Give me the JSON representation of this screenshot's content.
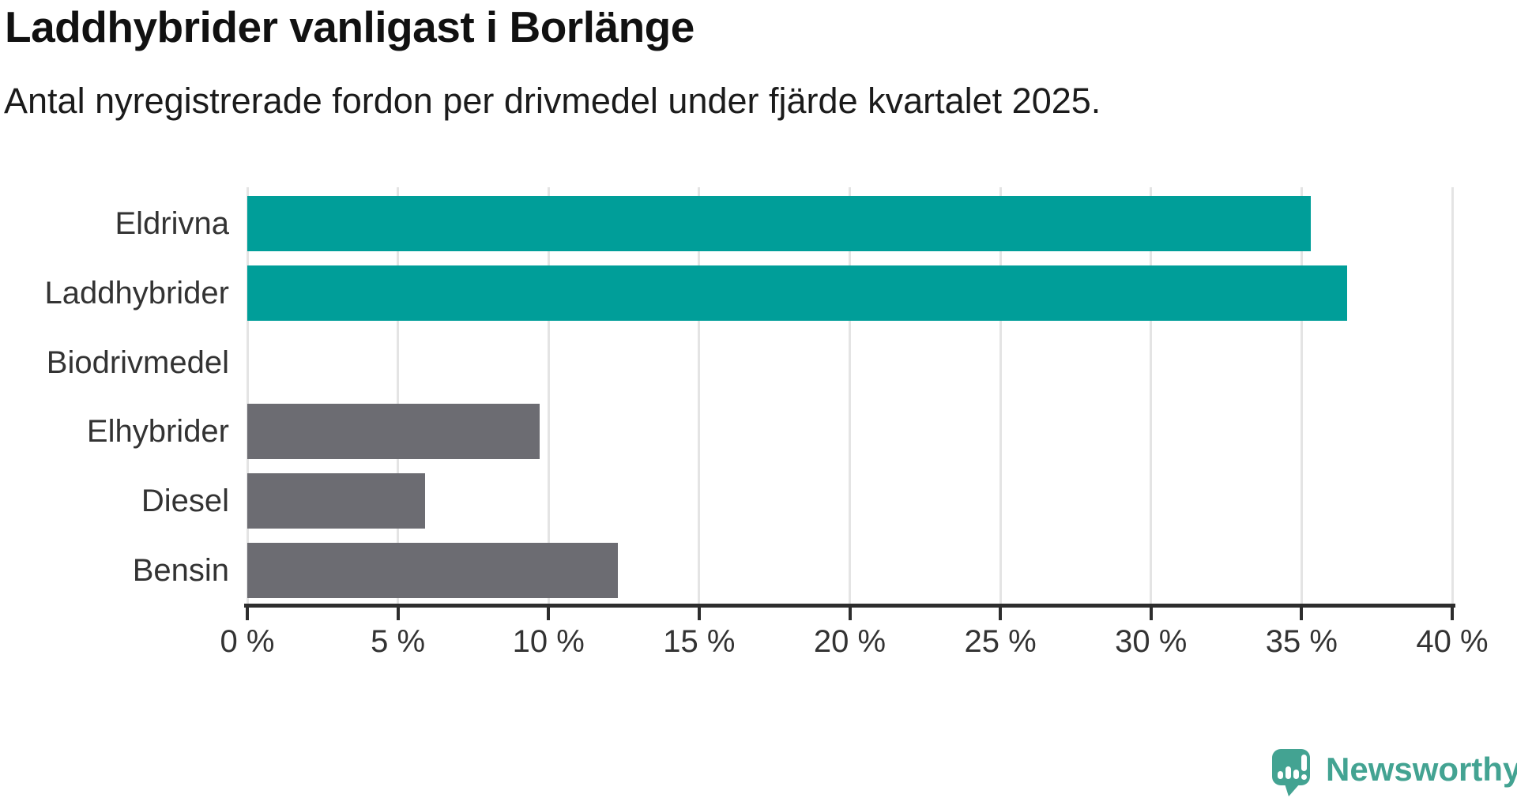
{
  "title": "Laddhybrider vanligast i Borlänge",
  "subtitle": "Antal nyregistrerade fordon per drivmedel under fjärde kvartalet 2025.",
  "branding": {
    "name": "Newsworthy",
    "logo_icon": "speech-bubble-bar-chart-icon"
  },
  "colors": {
    "highlight": "#009E99",
    "muted": "#6C6C72",
    "axis": "#2D2D2D",
    "grid": "#E4E4E4",
    "tick_text": "#333333",
    "title_text": "#111111",
    "logo": "#43A392"
  },
  "chart_data": {
    "type": "bar",
    "orientation": "horizontal",
    "title": "Laddhybrider vanligast i Borlänge",
    "subtitle": "Antal nyregistrerade fordon per drivmedel under fjärde kvartalet 2025.",
    "categories": [
      "Eldrivna",
      "Laddhybrider",
      "Biodrivmedel",
      "Elhybrider",
      "Diesel",
      "Bensin"
    ],
    "values": [
      35.3,
      36.5,
      0,
      9.7,
      5.9,
      12.3
    ],
    "unit": "%",
    "bar_color_roles": [
      "highlight",
      "highlight",
      "muted",
      "muted",
      "muted",
      "muted"
    ],
    "xlim": [
      0,
      40
    ],
    "xticks": [
      0,
      5,
      10,
      15,
      20,
      25,
      30,
      35,
      40
    ],
    "xtick_labels": [
      "0 %",
      "5 %",
      "10 %",
      "15 %",
      "20 %",
      "25 %",
      "30 %",
      "35 %",
      "40 %"
    ],
    "grid": "vertical",
    "legend": "none",
    "value_labels": "none"
  }
}
